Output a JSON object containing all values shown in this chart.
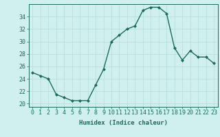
{
  "x": [
    0,
    1,
    2,
    3,
    4,
    5,
    6,
    7,
    8,
    9,
    10,
    11,
    12,
    13,
    14,
    15,
    16,
    17,
    18,
    19,
    20,
    21,
    22,
    23
  ],
  "y": [
    25,
    24.5,
    24,
    21.5,
    21,
    20.5,
    20.5,
    20.5,
    23,
    25.5,
    30,
    31,
    32,
    32.5,
    35,
    35.5,
    35.5,
    34.5,
    29,
    27,
    28.5,
    27.5,
    27.5,
    26.5
  ],
  "line_color": "#1a6b5a",
  "marker": "D",
  "marker_size": 2.0,
  "bg_color": "#cff0ec",
  "grid_color": "#b8e0db",
  "xlabel": "Humidex (Indice chaleur)",
  "ylim": [
    19.5,
    36
  ],
  "xlim": [
    -0.5,
    23.5
  ],
  "yticks": [
    20,
    22,
    24,
    26,
    28,
    30,
    32,
    34
  ],
  "xticks": [
    0,
    1,
    2,
    3,
    4,
    5,
    6,
    7,
    8,
    9,
    10,
    11,
    12,
    13,
    14,
    15,
    16,
    17,
    18,
    19,
    20,
    21,
    22,
    23
  ],
  "xlabel_fontsize": 6.5,
  "tick_fontsize": 6.0,
  "line_width": 1.0
}
